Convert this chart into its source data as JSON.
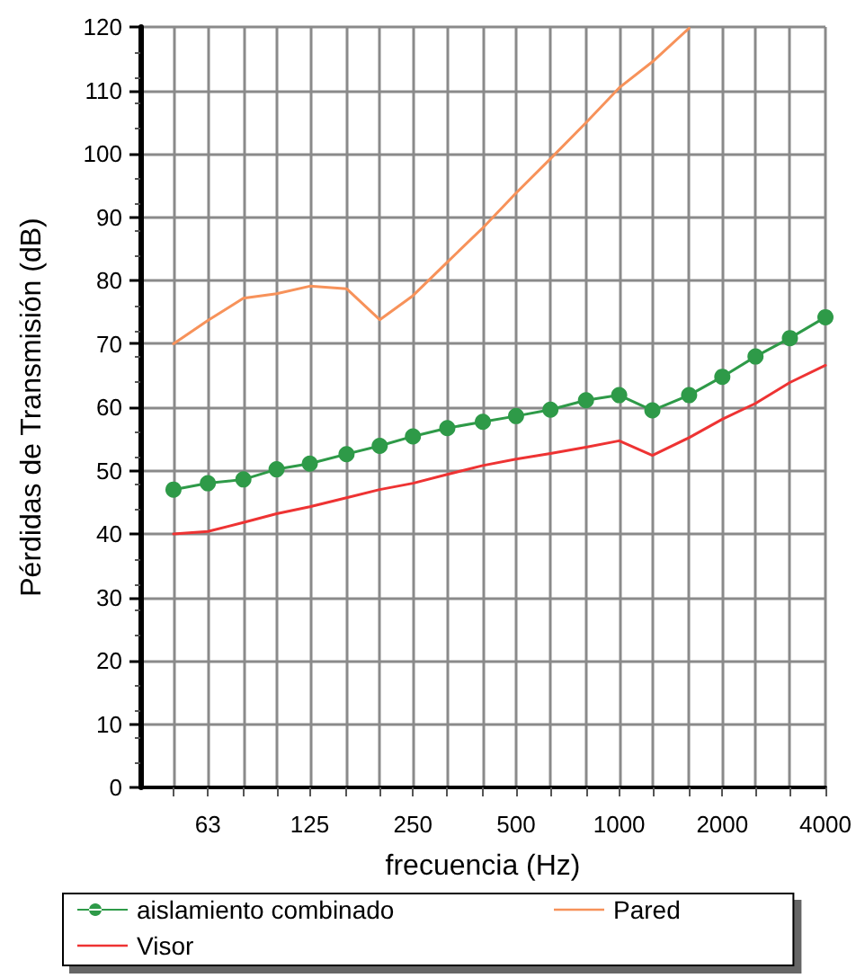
{
  "chart_data": {
    "type": "line",
    "xlabel": "frecuencia (Hz)",
    "ylabel": "Pérdidas de Transmisión (dB)",
    "x": [
      50,
      63,
      80,
      100,
      125,
      160,
      200,
      250,
      315,
      400,
      500,
      630,
      800,
      1000,
      1250,
      1600,
      2000,
      2500,
      3150,
      4000
    ],
    "series": [
      {
        "name": "aislamiento combinado",
        "color": "#2e9a48",
        "marker": "circle",
        "values": [
          47,
          48,
          48.6,
          50.2,
          51.1,
          52.6,
          53.9,
          55.4,
          56.7,
          57.7,
          58.6,
          59.6,
          61.1,
          61.9,
          59.5,
          61.9,
          64.8,
          68,
          70.9,
          74.2
        ]
      },
      {
        "name": "Pared",
        "color": "#f7925a",
        "marker": "none",
        "values": [
          70,
          73.7,
          77.2,
          77.9,
          79.1,
          78.7,
          73.8,
          77.6,
          82.9,
          88.3,
          93.8,
          99.2,
          104.9,
          110.4,
          114.5,
          119.8,
          null,
          null,
          null,
          null
        ]
      },
      {
        "name": "Visor",
        "color": "#ee3333",
        "marker": "none",
        "values": [
          40,
          40.4,
          41.8,
          43.2,
          44.3,
          45.7,
          47,
          48,
          49.4,
          50.8,
          51.8,
          52.7,
          53.7,
          54.7,
          52.4,
          55.2,
          58.1,
          60.6,
          63.9,
          66.6
        ]
      }
    ],
    "log": "x",
    "xlim": [
      40,
      4000
    ],
    "xticks": [
      {
        "value": 50,
        "label": null
      },
      63,
      {
        "value": 80,
        "label": null
      },
      {
        "value": 100,
        "label": null
      },
      125,
      {
        "value": 160,
        "label": null
      },
      {
        "value": 200,
        "label": null
      },
      250,
      {
        "value": 315,
        "label": null
      },
      {
        "value": 400,
        "label": null
      },
      500,
      {
        "value": 630,
        "label": null
      },
      {
        "value": 800,
        "label": null
      },
      1000,
      {
        "value": 1250,
        "label": null
      },
      {
        "value": 1600,
        "label": null
      },
      2000,
      {
        "value": 2500,
        "label": null
      },
      {
        "value": 3150,
        "label": null
      },
      4000
    ],
    "ylim": [
      0,
      120
    ],
    "yticks": [
      0,
      10,
      20,
      30,
      40,
      50,
      60,
      70,
      80,
      90,
      100,
      110,
      120
    ],
    "grid": true,
    "legend": "bottom",
    "line_style": "solid"
  }
}
